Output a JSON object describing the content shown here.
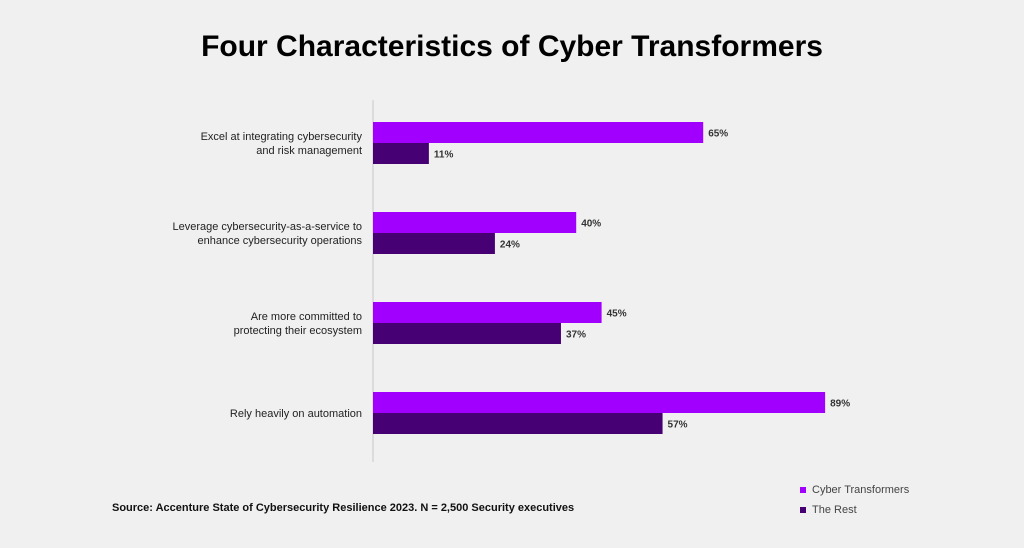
{
  "chart_data": {
    "type": "bar",
    "orientation": "horizontal",
    "title": "Four Characteristics of Cyber Transformers",
    "categories": [
      "Excel at integrating cybersecurity\nand risk management",
      "Leverage cybersecurity-as-a-service to\nenhance cybersecurity operations",
      "Are more committed to\nprotecting their ecosystem",
      "Rely heavily on automation"
    ],
    "series": [
      {
        "name": "Cyber Transformers",
        "values": [
          65,
          40,
          45,
          89
        ],
        "labels": [
          "65%",
          "40%",
          "45%",
          "89%"
        ],
        "color": "#a100ff"
      },
      {
        "name": "The Rest",
        "values": [
          11,
          24,
          37,
          57
        ],
        "labels": [
          "11%",
          "24%",
          "37%",
          "57%"
        ],
        "color": "#460073"
      }
    ],
    "xlim": [
      0,
      100
    ],
    "legend": "bottom-right",
    "grid": false,
    "source": "Source: Accenture State of Cybersecurity Resilience 2023. N = 2,500 Security executives"
  }
}
